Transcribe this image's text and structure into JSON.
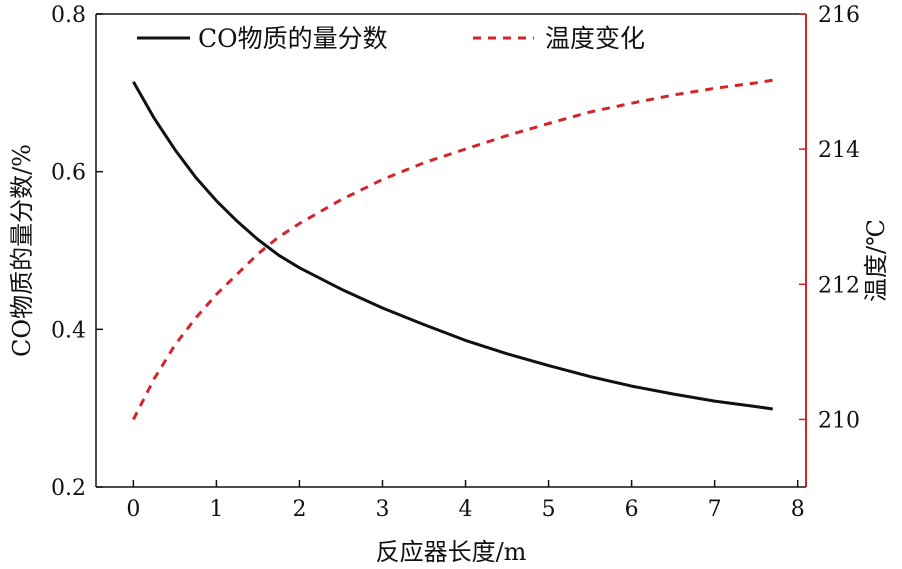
{
  "chart_data": {
    "type": "line",
    "title": "",
    "xlabel": "反应器长度/m",
    "ylabel": "CO物质的量分数/%",
    "y2label": "温度/℃",
    "xlim": [
      -0.45,
      8.1
    ],
    "ylim": [
      0.2,
      0.8
    ],
    "y2lim": [
      209,
      216
    ],
    "x_ticks": [
      "0",
      "1",
      "2",
      "3",
      "4",
      "5",
      "6",
      "7",
      "8"
    ],
    "y_ticks": [
      "0.2",
      "0.4",
      "0.6",
      "0.8"
    ],
    "y2_ticks": [
      "210",
      "212",
      "214",
      "216"
    ],
    "legend_position": "top",
    "colors": {
      "co": "#111111",
      "temp": "#d3242b",
      "right_axis": "#d3242b",
      "left_axis": "#111111"
    },
    "series": [
      {
        "name": "CO物质的量分数",
        "axis": "left",
        "style": "solid",
        "x": [
          0,
          0.25,
          0.5,
          0.75,
          1,
          1.25,
          1.5,
          1.75,
          2,
          2.5,
          3,
          3.5,
          4,
          4.5,
          5,
          5.5,
          6,
          6.5,
          7,
          7.5,
          7.7
        ],
        "values": [
          0.714,
          0.668,
          0.628,
          0.593,
          0.563,
          0.537,
          0.514,
          0.494,
          0.478,
          0.451,
          0.427,
          0.406,
          0.386,
          0.369,
          0.354,
          0.34,
          0.328,
          0.318,
          0.309,
          0.302,
          0.299
        ]
      },
      {
        "name": "温度变化",
        "axis": "right",
        "style": "dashed",
        "x": [
          0,
          0.25,
          0.5,
          0.75,
          1,
          1.25,
          1.5,
          1.75,
          2,
          2.5,
          3,
          3.5,
          4,
          4.5,
          5,
          5.5,
          6,
          6.5,
          7,
          7.5,
          7.7
        ],
        "values": [
          210.0,
          210.6,
          211.1,
          211.5,
          211.85,
          212.15,
          212.45,
          212.7,
          212.9,
          213.25,
          213.55,
          213.8,
          214.0,
          214.2,
          214.38,
          214.55,
          214.68,
          214.8,
          214.9,
          214.98,
          215.02
        ]
      }
    ]
  }
}
